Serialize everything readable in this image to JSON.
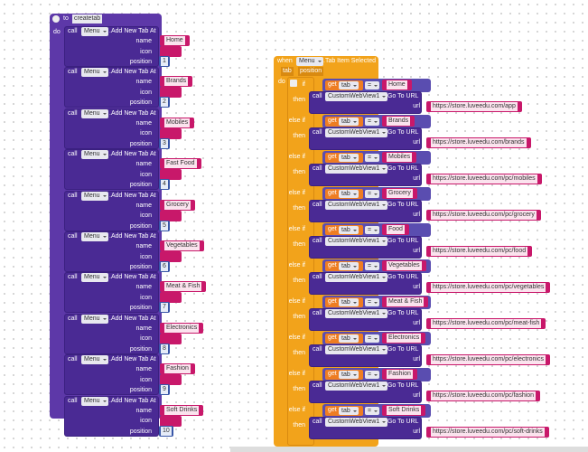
{
  "procedure": {
    "keyword": "to",
    "name": "createtab",
    "do": "do",
    "call": "call",
    "component": "Menu",
    "method": ".Add New Tab At",
    "params": [
      "name",
      "icon",
      "position"
    ],
    "tabs": [
      {
        "name": "Home",
        "position": 1
      },
      {
        "name": "Brands",
        "position": 2
      },
      {
        "name": "Mobiles",
        "position": 3
      },
      {
        "name": "Fast Food",
        "position": 4
      },
      {
        "name": "Grocery",
        "position": 5
      },
      {
        "name": "Vegetables",
        "position": 6
      },
      {
        "name": "Meat & Fish",
        "position": 7
      },
      {
        "name": "Electronics",
        "position": 8
      },
      {
        "name": "Fashion",
        "position": 9
      },
      {
        "name": "Soft Drinks",
        "position": 10
      }
    ]
  },
  "event": {
    "keyword": "when",
    "component": "Menu",
    "event": ".Tab Item Selected",
    "params": [
      "tab",
      "position"
    ],
    "do": "do",
    "if": "if",
    "else_if": "else if",
    "then": "then",
    "get": "get",
    "variable": "tab",
    "operator": "=",
    "call": "call",
    "target": "CustomWebView1",
    "method": ".Go To URL",
    "arg": "url",
    "branches": [
      {
        "match": "Home",
        "url": "https://store.luveedu.com/app"
      },
      {
        "match": "Brands",
        "url": "https://store.luveedu.com/brands"
      },
      {
        "match": "Mobiles",
        "url": "https://store.luveedu.com/pc/mobiles"
      },
      {
        "match": "Grocery",
        "url": "https://store.luveedu.com/pc/grocery"
      },
      {
        "match": "Food",
        "url": "https://store.luveedu.com/pc/food"
      },
      {
        "match": "Vegetables",
        "url": "https://store.luveedu.com/pc/vegetables"
      },
      {
        "match": "Meat & Fish",
        "url": "https://store.luveedu.com/pc/meat-fish"
      },
      {
        "match": "Electronics",
        "url": "https://store.luveedu.com/pc/electronics"
      },
      {
        "match": "Fashion",
        "url": "https://store.luveedu.com/pc/fashion"
      },
      {
        "match": "Soft Drinks",
        "url": "https://store.luveedu.com/pc/soft-drinks"
      }
    ]
  }
}
